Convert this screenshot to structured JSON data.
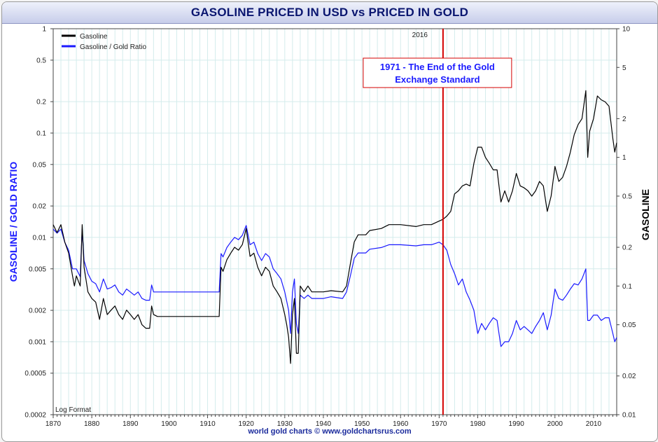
{
  "title": "GASOLINE PRICED IN USD vs PRICED IN GOLD",
  "footer": "world gold charts © www.goldchartsrus.com",
  "colors": {
    "gasoline": "#000000",
    "ratio": "#1a1aff",
    "marker": "#d40000",
    "grid": "#d4ecec",
    "left_axis_label": "#1a1aff",
    "right_axis_label": "#000000"
  },
  "chart_data": {
    "type": "line",
    "left_axis": {
      "label": "GASOLINE / GOLD RATIO",
      "scale": "log",
      "ylim": [
        0.0002,
        1
      ],
      "ticks": [
        {
          "value": 1,
          "label": "1"
        },
        {
          "value": 0.5,
          "label": "0.5"
        },
        {
          "value": 0.2,
          "label": "0.2"
        },
        {
          "value": 0.1,
          "label": "0.1"
        },
        {
          "value": 0.05,
          "label": "0.05"
        },
        {
          "value": 0.02,
          "label": "0.02"
        },
        {
          "value": 0.01,
          "label": "0.01"
        },
        {
          "value": 0.005,
          "label": "0.005"
        },
        {
          "value": 0.002,
          "label": "0.002"
        },
        {
          "value": 0.001,
          "label": "0.001"
        },
        {
          "value": 0.0005,
          "label": "0.0005"
        },
        {
          "value": 0.0002,
          "label": "0.0002"
        }
      ]
    },
    "right_axis": {
      "label": "GASOLINE",
      "scale": "log",
      "ylim": [
        0.01,
        10
      ],
      "ticks": [
        {
          "value": 10,
          "label": "10"
        },
        {
          "value": 5,
          "label": "5"
        },
        {
          "value": 2,
          "label": "2"
        },
        {
          "value": 1,
          "label": "1"
        },
        {
          "value": 0.5,
          "label": "0.5"
        },
        {
          "value": 0.2,
          "label": "0.2"
        },
        {
          "value": 0.1,
          "label": "0.1"
        },
        {
          "value": 0.05,
          "label": "0.05"
        },
        {
          "value": 0.02,
          "label": "0.02"
        },
        {
          "value": 0.01,
          "label": "0.01"
        }
      ]
    },
    "x_axis": {
      "xlim": [
        1870,
        2016
      ],
      "ticks": [
        "1870",
        "1880",
        "1890",
        "1900",
        "1910",
        "1920",
        "1930",
        "1940",
        "1950",
        "1960",
        "1970",
        "1980",
        "1990",
        "2000",
        "2010"
      ]
    },
    "grid": true,
    "legend_position": "top-left",
    "top_label": "2016",
    "scale_note": "Log Format",
    "annotation": {
      "text_line1": "1971 - The End of the Gold",
      "text_line2": "Exchange Standard",
      "x": 1971
    },
    "series": [
      {
        "name": "Gasoline",
        "axis": "right",
        "color": "#000000",
        "points": [
          [
            1870,
            0.3
          ],
          [
            1871,
            0.26
          ],
          [
            1872,
            0.3
          ],
          [
            1873,
            0.22
          ],
          [
            1874,
            0.18
          ],
          [
            1875,
            0.12
          ],
          [
            1875.5,
            0.1
          ],
          [
            1876,
            0.12
          ],
          [
            1877,
            0.1
          ],
          [
            1877.5,
            0.3
          ],
          [
            1878,
            0.14
          ],
          [
            1879,
            0.09
          ],
          [
            1880,
            0.08
          ],
          [
            1881,
            0.075
          ],
          [
            1882,
            0.055
          ],
          [
            1883,
            0.08
          ],
          [
            1884,
            0.06
          ],
          [
            1885,
            0.065
          ],
          [
            1886,
            0.07
          ],
          [
            1887,
            0.06
          ],
          [
            1888,
            0.055
          ],
          [
            1889,
            0.065
          ],
          [
            1890,
            0.06
          ],
          [
            1891,
            0.055
          ],
          [
            1892,
            0.06
          ],
          [
            1893,
            0.05
          ],
          [
            1894,
            0.047
          ],
          [
            1895,
            0.047
          ],
          [
            1895.5,
            0.07
          ],
          [
            1896,
            0.06
          ],
          [
            1897,
            0.058
          ],
          [
            1913,
            0.058
          ],
          [
            1913.5,
            0.14
          ],
          [
            1914,
            0.13
          ],
          [
            1915,
            0.16
          ],
          [
            1916,
            0.18
          ],
          [
            1917,
            0.2
          ],
          [
            1918,
            0.19
          ],
          [
            1919,
            0.21
          ],
          [
            1920,
            0.28
          ],
          [
            1921,
            0.17
          ],
          [
            1922,
            0.18
          ],
          [
            1923,
            0.14
          ],
          [
            1924,
            0.12
          ],
          [
            1925,
            0.14
          ],
          [
            1926,
            0.13
          ],
          [
            1927,
            0.1
          ],
          [
            1928,
            0.09
          ],
          [
            1929,
            0.08
          ],
          [
            1930,
            0.06
          ],
          [
            1930.5,
            0.05
          ],
          [
            1931,
            0.04
          ],
          [
            1931.5,
            0.025
          ],
          [
            1932,
            0.06
          ],
          [
            1932.5,
            0.08
          ],
          [
            1933,
            0.03
          ],
          [
            1933.5,
            0.03
          ],
          [
            1934,
            0.1
          ],
          [
            1935,
            0.09
          ],
          [
            1936,
            0.1
          ],
          [
            1937,
            0.09
          ],
          [
            1938,
            0.09
          ],
          [
            1940,
            0.09
          ],
          [
            1942,
            0.092
          ],
          [
            1945,
            0.09
          ],
          [
            1946,
            0.1
          ],
          [
            1947,
            0.15
          ],
          [
            1948,
            0.22
          ],
          [
            1949,
            0.25
          ],
          [
            1951,
            0.25
          ],
          [
            1952,
            0.27
          ],
          [
            1955,
            0.28
          ],
          [
            1957,
            0.3
          ],
          [
            1960,
            0.3
          ],
          [
            1964,
            0.29
          ],
          [
            1966,
            0.3
          ],
          [
            1968,
            0.3
          ],
          [
            1970,
            0.32
          ],
          [
            1971,
            0.33
          ],
          [
            1972,
            0.35
          ],
          [
            1973,
            0.38
          ],
          [
            1974,
            0.52
          ],
          [
            1975,
            0.55
          ],
          [
            1976,
            0.6
          ],
          [
            1977,
            0.62
          ],
          [
            1978,
            0.6
          ],
          [
            1979,
            0.9
          ],
          [
            1980,
            1.2
          ],
          [
            1981,
            1.2
          ],
          [
            1982,
            1.0
          ],
          [
            1983,
            0.9
          ],
          [
            1984,
            0.8
          ],
          [
            1985,
            0.8
          ],
          [
            1986,
            0.45
          ],
          [
            1987,
            0.55
          ],
          [
            1988,
            0.45
          ],
          [
            1989,
            0.55
          ],
          [
            1990,
            0.75
          ],
          [
            1991,
            0.6
          ],
          [
            1992,
            0.58
          ],
          [
            1993,
            0.55
          ],
          [
            1994,
            0.5
          ],
          [
            1995,
            0.55
          ],
          [
            1996,
            0.65
          ],
          [
            1997,
            0.6
          ],
          [
            1998,
            0.38
          ],
          [
            1999,
            0.5
          ],
          [
            2000,
            0.85
          ],
          [
            2001,
            0.65
          ],
          [
            2002,
            0.7
          ],
          [
            2003,
            0.85
          ],
          [
            2004,
            1.1
          ],
          [
            2005,
            1.5
          ],
          [
            2006,
            1.8
          ],
          [
            2007,
            2.0
          ],
          [
            2008,
            3.3
          ],
          [
            2008.5,
            1.0
          ],
          [
            2009,
            1.6
          ],
          [
            2010,
            2.0
          ],
          [
            2011,
            3.0
          ],
          [
            2012,
            2.8
          ],
          [
            2013,
            2.7
          ],
          [
            2014,
            2.5
          ],
          [
            2015,
            1.4
          ],
          [
            2015.5,
            1.1
          ],
          [
            2016,
            1.3
          ]
        ]
      },
      {
        "name": "Gasoline / Gold Ratio",
        "axis": "left",
        "color": "#1a1aff",
        "points": [
          [
            1870,
            0.012
          ],
          [
            1871,
            0.011
          ],
          [
            1872,
            0.012
          ],
          [
            1873,
            0.009
          ],
          [
            1874,
            0.0075
          ],
          [
            1875,
            0.005
          ],
          [
            1876,
            0.005
          ],
          [
            1877,
            0.0042
          ],
          [
            1877.5,
            0.012
          ],
          [
            1878,
            0.006
          ],
          [
            1879,
            0.0045
          ],
          [
            1880,
            0.0038
          ],
          [
            1881,
            0.0036
          ],
          [
            1882,
            0.003
          ],
          [
            1883,
            0.004
          ],
          [
            1884,
            0.0032
          ],
          [
            1885,
            0.0033
          ],
          [
            1886,
            0.0035
          ],
          [
            1887,
            0.003
          ],
          [
            1888,
            0.0028
          ],
          [
            1889,
            0.0032
          ],
          [
            1890,
            0.003
          ],
          [
            1891,
            0.0028
          ],
          [
            1892,
            0.003
          ],
          [
            1893,
            0.0026
          ],
          [
            1894,
            0.0025
          ],
          [
            1895,
            0.0025
          ],
          [
            1895.5,
            0.0035
          ],
          [
            1896,
            0.003
          ],
          [
            1897,
            0.003
          ],
          [
            1913,
            0.003
          ],
          [
            1913.5,
            0.007
          ],
          [
            1914,
            0.0065
          ],
          [
            1915,
            0.008
          ],
          [
            1916,
            0.009
          ],
          [
            1917,
            0.01
          ],
          [
            1918,
            0.0095
          ],
          [
            1919,
            0.0105
          ],
          [
            1920,
            0.013
          ],
          [
            1921,
            0.0085
          ],
          [
            1922,
            0.009
          ],
          [
            1923,
            0.007
          ],
          [
            1924,
            0.006
          ],
          [
            1925,
            0.007
          ],
          [
            1926,
            0.0065
          ],
          [
            1927,
            0.005
          ],
          [
            1928,
            0.0045
          ],
          [
            1929,
            0.004
          ],
          [
            1930,
            0.003
          ],
          [
            1931,
            0.002
          ],
          [
            1931.5,
            0.0012
          ],
          [
            1932,
            0.003
          ],
          [
            1932.5,
            0.004
          ],
          [
            1933,
            0.0015
          ],
          [
            1933.5,
            0.0012
          ],
          [
            1934,
            0.0028
          ],
          [
            1935,
            0.0026
          ],
          [
            1936,
            0.0028
          ],
          [
            1937,
            0.0026
          ],
          [
            1938,
            0.0026
          ],
          [
            1940,
            0.0026
          ],
          [
            1942,
            0.0027
          ],
          [
            1945,
            0.0026
          ],
          [
            1946,
            0.003
          ],
          [
            1947,
            0.0043
          ],
          [
            1948,
            0.0063
          ],
          [
            1949,
            0.0071
          ],
          [
            1951,
            0.0071
          ],
          [
            1952,
            0.0077
          ],
          [
            1955,
            0.008
          ],
          [
            1957,
            0.0085
          ],
          [
            1960,
            0.0085
          ],
          [
            1964,
            0.0083
          ],
          [
            1966,
            0.0085
          ],
          [
            1968,
            0.0085
          ],
          [
            1970,
            0.009
          ],
          [
            1971,
            0.0085
          ],
          [
            1972,
            0.0075
          ],
          [
            1973,
            0.0055
          ],
          [
            1974,
            0.0045
          ],
          [
            1975,
            0.0035
          ],
          [
            1976,
            0.004
          ],
          [
            1977,
            0.003
          ],
          [
            1978,
            0.0025
          ],
          [
            1979,
            0.002
          ],
          [
            1980,
            0.0012
          ],
          [
            1981,
            0.0015
          ],
          [
            1982,
            0.0013
          ],
          [
            1983,
            0.0015
          ],
          [
            1984,
            0.0017
          ],
          [
            1985,
            0.0016
          ],
          [
            1986,
            0.0009
          ],
          [
            1987,
            0.001
          ],
          [
            1988,
            0.001
          ],
          [
            1989,
            0.0012
          ],
          [
            1990,
            0.0016
          ],
          [
            1991,
            0.0013
          ],
          [
            1992,
            0.0014
          ],
          [
            1993,
            0.0013
          ],
          [
            1994,
            0.0012
          ],
          [
            1995,
            0.0014
          ],
          [
            1996,
            0.0016
          ],
          [
            1997,
            0.0019
          ],
          [
            1998,
            0.0013
          ],
          [
            1999,
            0.0018
          ],
          [
            2000,
            0.0032
          ],
          [
            2001,
            0.0026
          ],
          [
            2002,
            0.0025
          ],
          [
            2003,
            0.0028
          ],
          [
            2004,
            0.0032
          ],
          [
            2005,
            0.0036
          ],
          [
            2006,
            0.0035
          ],
          [
            2007,
            0.004
          ],
          [
            2008,
            0.005
          ],
          [
            2008.5,
            0.0016
          ],
          [
            2009,
            0.0016
          ],
          [
            2010,
            0.0018
          ],
          [
            2011,
            0.0018
          ],
          [
            2012,
            0.0016
          ],
          [
            2013,
            0.0017
          ],
          [
            2014,
            0.0017
          ],
          [
            2015,
            0.0012
          ],
          [
            2015.5,
            0.001
          ],
          [
            2016,
            0.0011
          ]
        ]
      }
    ]
  }
}
